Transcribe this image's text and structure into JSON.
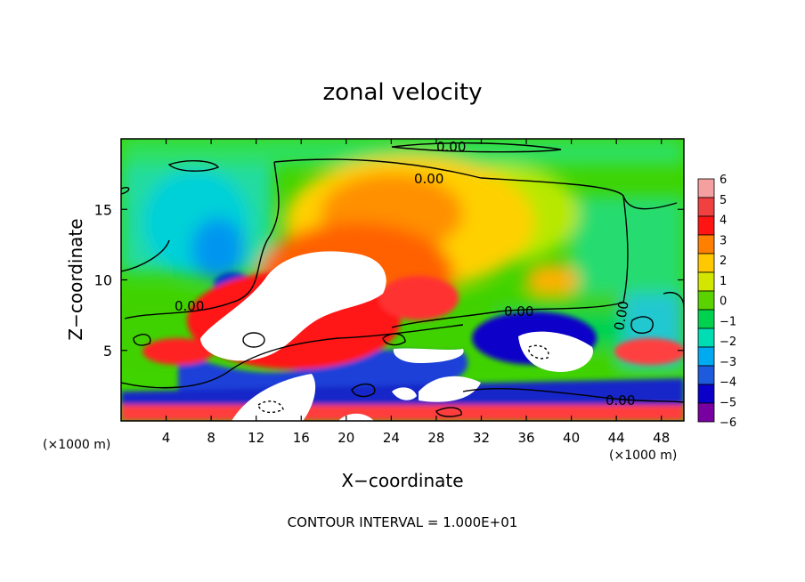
{
  "chart_data": {
    "type": "heatmap",
    "title": "zonal velocity",
    "xlabel": "X−coordinate",
    "ylabel": "Z−coordinate",
    "x_unit_left": "(×1000 m)",
    "x_unit_right": "(×1000 m)",
    "footer": "CONTOUR INTERVAL = 1.000E+01",
    "xlim": [
      0,
      50
    ],
    "ylim": [
      0,
      20
    ],
    "x_ticks": [
      "4",
      "8",
      "12",
      "16",
      "20",
      "24",
      "28",
      "32",
      "36",
      "40",
      "44",
      "48"
    ],
    "x_tick_values": [
      4,
      8,
      12,
      16,
      20,
      24,
      28,
      32,
      36,
      40,
      44,
      48
    ],
    "y_ticks": [
      "5",
      "10",
      "15"
    ],
    "y_tick_values": [
      5,
      10,
      15
    ],
    "colorbar": {
      "labels": [
        "6",
        "5",
        "4",
        "3",
        "2",
        "1",
        "0",
        "−1",
        "−2",
        "−3",
        "−4",
        "−5",
        "−6"
      ],
      "values": [
        6,
        5,
        4,
        3,
        2,
        1,
        0,
        -1,
        -2,
        -3,
        -4,
        -5,
        -6
      ],
      "colors": [
        "#f4a0a0",
        "#f04040",
        "#ff1414",
        "#ff8000",
        "#ffc800",
        "#d2e600",
        "#5ad200",
        "#00d250",
        "#00dcb4",
        "#00aaf0",
        "#1e5adc",
        "#0a00c8",
        "#7800a0"
      ]
    },
    "contour_labels": [
      "0.00",
      "0.00",
      "0.00",
      "0.00",
      "0.00",
      "0.00"
    ]
  }
}
